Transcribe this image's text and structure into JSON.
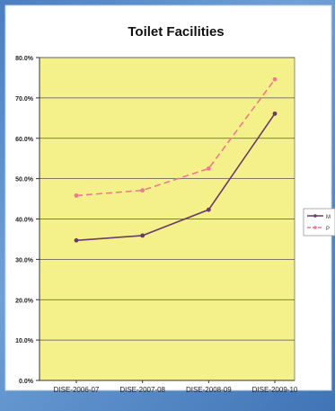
{
  "chart_data": {
    "type": "line",
    "title": "Toilet Facilities",
    "categories": [
      "DISE-2006-07",
      "DISE-2007-08",
      "DISE-2008-09",
      "DISE-2009-10"
    ],
    "y_ticks": [
      "0.0%",
      "10.0%",
      "20.0%",
      "30.0%",
      "40.0%",
      "50.0%",
      "60.0%",
      "70.0%",
      "80.0%"
    ],
    "ylim": [
      0,
      80
    ],
    "grid": true,
    "legend_position": "right",
    "series": [
      {
        "legend_text": "M",
        "values": [
          34.7,
          35.9,
          42.3,
          66.1
        ],
        "color": "#6a3a6a",
        "dashed": false
      },
      {
        "legend_text": "P",
        "values": [
          45.8,
          47.1,
          52.5,
          74.6
        ],
        "color": "#f07890",
        "dashed": true
      }
    ],
    "colors": {
      "plot_background": "#f4f08a",
      "chart_background": "#ffffff",
      "gridline": "#555555"
    }
  }
}
